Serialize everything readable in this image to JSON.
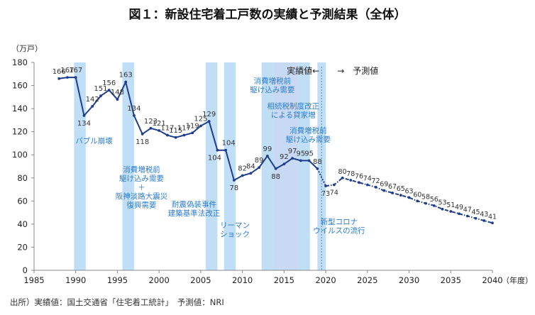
{
  "title": "図１：新設住宅着工戸数の実績と予測結果（全体）",
  "source": "出所）実績値：国土交通省「住宅着工統計」　予測値：NRI",
  "chart_data": {
    "type": "line",
    "title": "図１：新設住宅着工戸数の実績と予測結果（全体）",
    "y_unit": "（万戸）",
    "x_unit": "（年度）",
    "xlim": [
      1985,
      2040
    ],
    "ylim": [
      0,
      180
    ],
    "x_ticks": [
      1985,
      1990,
      1995,
      2000,
      2005,
      2010,
      2015,
      2020,
      2025,
      2030,
      2035,
      2040
    ],
    "y_ticks": [
      0,
      20,
      40,
      60,
      80,
      100,
      120,
      140,
      160,
      180
    ],
    "grid": false,
    "legend": "none",
    "colors": {
      "actual": "#1f3d8c",
      "forecast": "#1f3d8c",
      "band": "#b9dcf6",
      "band_dark": "#c2d5f5",
      "annotation": "#2b7bd0",
      "divider": "#5a7fd0"
    },
    "actual_label": "実績値←",
    "forecast_label": "→　予測値",
    "series": [
      {
        "type": "actual",
        "x": [
          1988,
          1989,
          1990,
          1991,
          1992,
          1993,
          1994,
          1995,
          1996,
          1997,
          1998,
          1999,
          2000,
          2001,
          2002,
          2003,
          2004,
          2005,
          2006,
          2007,
          2008,
          2009,
          2010,
          2011,
          2012,
          2013,
          2014,
          2015,
          2016,
          2017,
          2018,
          2019
        ],
        "y": [
          166,
          167,
          167,
          134,
          142,
          151,
          156,
          148,
          163,
          134,
          118,
          123,
          121,
          117,
          115,
          117,
          119,
          125,
          129,
          104,
          104,
          78,
          82,
          84,
          89,
          99,
          88,
          92,
          97,
          95,
          95,
          88
        ]
      },
      {
        "type": "forecast",
        "x": [
          2020,
          2021,
          2022,
          2023,
          2024,
          2025,
          2026,
          2027,
          2028,
          2029,
          2030,
          2031,
          2032,
          2033,
          2034,
          2035,
          2036,
          2037,
          2038,
          2039,
          2040
        ],
        "y": [
          73,
          74,
          80,
          78,
          76,
          74,
          72,
          69,
          67,
          65,
          63,
          60,
          58,
          56,
          53,
          51,
          49,
          47,
          45,
          43,
          41
        ]
      }
    ],
    "shaded_bands": [
      {
        "from": 1989.8,
        "to": 1991.2
      },
      {
        "from": 1995.6,
        "to": 1997.0
      },
      {
        "from": 2005.6,
        "to": 2007.0
      },
      {
        "from": 2007.8,
        "to": 2009.2
      },
      {
        "from": 2012.3,
        "to": 2013.7
      },
      {
        "from": 2013.7,
        "to": 2016.7,
        "dark": true
      },
      {
        "from": 2016.7,
        "to": 2018.1
      },
      {
        "from": 2019.0,
        "to": 2020.0
      }
    ],
    "annotations": [
      {
        "x": 1992.2,
        "y": 110,
        "lines": [
          "バブル崩壊"
        ]
      },
      {
        "x": 1997.9,
        "y": 85,
        "lines": [
          "消費増税前",
          "駆け込み需要",
          "＋",
          "阪神淡路大震災",
          "復興需要"
        ]
      },
      {
        "x": 2004.2,
        "y": 55,
        "lines": [
          "耐震偽装事件",
          "建築基準法改正"
        ]
      },
      {
        "x": 2009.1,
        "y": 37,
        "lines": [
          "リーマン",
          "ショック"
        ]
      },
      {
        "x": 2013.6,
        "y": 162,
        "lines": [
          "消費増税前",
          "駆け込み需要"
        ]
      },
      {
        "x": 2016.1,
        "y": 140,
        "lines": [
          "相続税制度改正",
          "による貸家増"
        ]
      },
      {
        "x": 2017.9,
        "y": 119,
        "lines": [
          "消費増税前",
          "駆け込み需要"
        ]
      },
      {
        "x": 2021.6,
        "y": 40,
        "lines": [
          "新型コロナ",
          "ウイルスの流行"
        ]
      }
    ]
  }
}
